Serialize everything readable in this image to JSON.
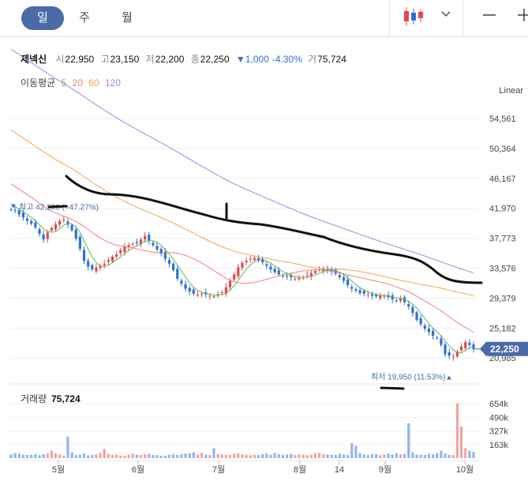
{
  "tabs": {
    "day": "일",
    "week": "주",
    "month": "월"
  },
  "toolbar": {
    "chart_icon": "candlestick-icon",
    "dropdown_icon": "chevron-down-icon",
    "minimize_icon": "minus-icon",
    "expand_icon": "plus-icon"
  },
  "info": {
    "name": "제넥신",
    "open_label": "시",
    "open": "22,950",
    "high_label": "고",
    "high": "23,150",
    "low_label": "저",
    "low": "22,200",
    "close_label": "종",
    "close": "22,250",
    "change": "▼1,000",
    "change_pct": "-4.30%",
    "volume_label": "거",
    "volume": "75,724"
  },
  "ma": {
    "label": "이동평균",
    "p5": "5",
    "p20": "20",
    "p60": "60",
    "p120": "120"
  },
  "scale_label": "Linear",
  "colors": {
    "up": "#e5484d",
    "down": "#2f6fd6",
    "ma5": "#5bb85b",
    "ma20": "#f07e7e",
    "ma60": "#f5a54a",
    "ma120": "#b07ee6",
    "accent": "#4a6aa8"
  },
  "chart_data": {
    "type": "candlestick",
    "y_ticks": [
      "54,561",
      "50,364",
      "46,167",
      "41,970",
      "37,773",
      "33,576",
      "29,379",
      "25,182",
      "20,985"
    ],
    "ylim": [
      18900,
      57000
    ],
    "current_price": "22,250",
    "high_annotation": "최고 42,200 (+47.27%)",
    "low_annotation": "최저 19,950 (11.53%)",
    "x_labels": [
      "5월",
      "6월",
      "7월",
      "8월",
      "14",
      "9월",
      "10월"
    ],
    "closes": [
      41800,
      41600,
      41100,
      40700,
      40200,
      39800,
      39300,
      38400,
      37600,
      38600,
      39200,
      39700,
      40200,
      40400,
      39700,
      38900,
      37700,
      36300,
      34600,
      33800,
      33400,
      33700,
      33900,
      34200,
      34700,
      35200,
      35500,
      36100,
      36600,
      36800,
      37000,
      37100,
      37600,
      38100,
      37400,
      36800,
      36200,
      35600,
      34900,
      34200,
      33300,
      32100,
      31400,
      30700,
      30300,
      30000,
      29900,
      30000,
      29900,
      29700,
      29600,
      29900,
      30200,
      30900,
      31800,
      32700,
      33700,
      34300,
      34600,
      34900,
      35000,
      34700,
      34400,
      33900,
      33400,
      33000,
      32700,
      32500,
      32400,
      32300,
      32100,
      32200,
      32300,
      32600,
      32900,
      33200,
      33400,
      33500,
      33300,
      33100,
      32800,
      32300,
      31800,
      31200,
      30700,
      30400,
      30100,
      30000,
      29900,
      29700,
      29600,
      29700,
      29700,
      29500,
      29200,
      29000,
      29300,
      28800,
      28200,
      27300,
      26300,
      25700,
      25100,
      24600,
      24100,
      23800,
      22800,
      21500,
      21300,
      21200,
      21900,
      22600,
      23200,
      22800,
      22250
    ],
    "volume": {
      "label": "거래량",
      "value": "75,724",
      "ticks": [
        "654k",
        "490k",
        "327k",
        "163k"
      ],
      "max": 760,
      "values": [
        45,
        60,
        55,
        40,
        38,
        42,
        50,
        36,
        48,
        55,
        90,
        62,
        44,
        30,
        260,
        70,
        35,
        42,
        55,
        33,
        40,
        48,
        60,
        110,
        52,
        38,
        44,
        31,
        29,
        40,
        55,
        42,
        38,
        46,
        52,
        40,
        35,
        30,
        28,
        42,
        50,
        38,
        46,
        55,
        60,
        72,
        44,
        66,
        40,
        38,
        120,
        52,
        46,
        40,
        38,
        52,
        60,
        45,
        40,
        36,
        42,
        38,
        48,
        55,
        40,
        62,
        48,
        40,
        44,
        52,
        38,
        46,
        40,
        36,
        42,
        58,
        62,
        48,
        44,
        40,
        38,
        52,
        44,
        36,
        180,
        150,
        60,
        44,
        40,
        48,
        52,
        38,
        46,
        55,
        42,
        60,
        48,
        50,
        420,
        70,
        44,
        40,
        38,
        52,
        46,
        60,
        90,
        55,
        40,
        38,
        660,
        380,
        120,
        90,
        75
      ]
    }
  }
}
